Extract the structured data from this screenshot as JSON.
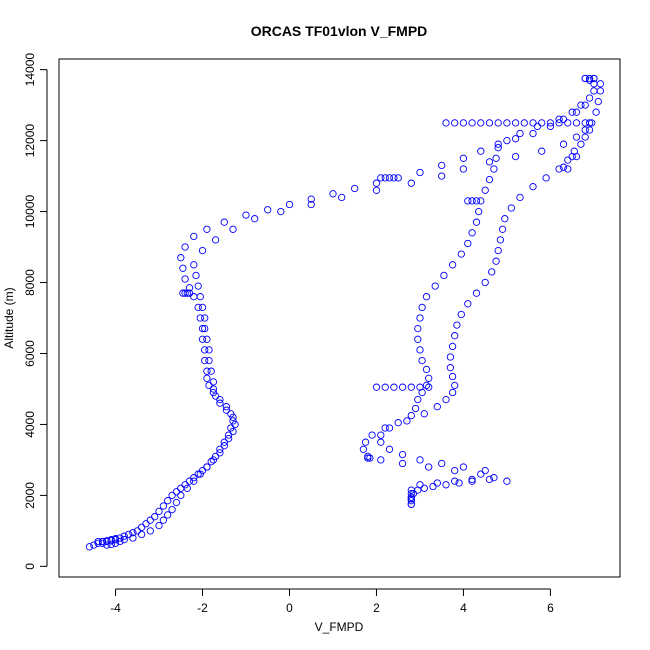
{
  "chart_data": {
    "type": "scatter",
    "title": "ORCAS TF01vlon V_FMPD",
    "xlabel": "V_FMPD",
    "ylabel": "Altitude (m)",
    "xlim": [
      -5.3,
      7.6
    ],
    "ylim": [
      -300,
      14300
    ],
    "xticks": [
      -4,
      -2,
      0,
      2,
      4,
      6
    ],
    "yticks": [
      0,
      2000,
      4000,
      6000,
      8000,
      10000,
      12000,
      14000
    ],
    "xtick_labels": [
      "-4",
      "-2",
      "0",
      "2",
      "4",
      "6"
    ],
    "ytick_labels": [
      "0",
      "2000",
      "4000",
      "6000",
      "8000",
      "10000",
      "12000",
      "14000"
    ],
    "marker": "open-circle",
    "color": "#0000ff",
    "grid": false,
    "legend": "none",
    "series": [
      {
        "points": [
          [
            -4.6,
            550
          ],
          [
            -4.5,
            600
          ],
          [
            -4.4,
            650
          ],
          [
            -4.3,
            700
          ],
          [
            -4.2,
            720
          ],
          [
            -4.1,
            750
          ],
          [
            -4.0,
            780
          ],
          [
            -3.9,
            800
          ],
          [
            -3.8,
            850
          ],
          [
            -3.7,
            900
          ],
          [
            -3.6,
            950
          ],
          [
            -3.5,
            1000
          ],
          [
            -3.4,
            1100
          ],
          [
            -3.3,
            1200
          ],
          [
            -3.2,
            1300
          ],
          [
            -3.1,
            1400
          ],
          [
            -3.0,
            1550
          ],
          [
            -2.9,
            1700
          ],
          [
            -2.8,
            1850
          ],
          [
            -2.7,
            2000
          ],
          [
            -2.6,
            2100
          ],
          [
            -2.5,
            2200
          ],
          [
            -2.4,
            2300
          ],
          [
            -2.3,
            2400
          ],
          [
            -2.2,
            2500
          ],
          [
            -2.1,
            2600
          ],
          [
            -2.0,
            2700
          ],
          [
            -1.9,
            2800
          ],
          [
            -1.8,
            2950
          ],
          [
            -1.7,
            3100
          ],
          [
            -1.6,
            3300
          ],
          [
            -1.5,
            3500
          ],
          [
            -1.4,
            3700
          ],
          [
            -1.35,
            3900
          ],
          [
            -1.3,
            4100
          ],
          [
            -1.35,
            4300
          ],
          [
            -1.45,
            4500
          ],
          [
            -1.6,
            4700
          ],
          [
            -1.75,
            4900
          ],
          [
            -1.85,
            5100
          ],
          [
            -1.9,
            5300
          ],
          [
            -1.9,
            5500
          ],
          [
            -1.95,
            5800
          ],
          [
            -1.95,
            6100
          ],
          [
            -2.0,
            6400
          ],
          [
            -2.0,
            6700
          ],
          [
            -2.05,
            7000
          ],
          [
            -2.1,
            7300
          ],
          [
            -2.2,
            7600
          ],
          [
            -2.3,
            7850
          ],
          [
            -2.4,
            8100
          ],
          [
            -2.45,
            8400
          ],
          [
            -2.5,
            8700
          ],
          [
            -2.4,
            9000
          ],
          [
            -2.2,
            9300
          ],
          [
            -1.9,
            9500
          ],
          [
            -1.5,
            9700
          ],
          [
            -1.0,
            9900
          ],
          [
            -0.5,
            10050
          ],
          [
            0,
            10200
          ],
          [
            0.5,
            10350
          ],
          [
            1.0,
            10500
          ],
          [
            1.5,
            10650
          ],
          [
            2.0,
            10800
          ],
          [
            2.5,
            10950
          ],
          [
            3.0,
            11100
          ],
          [
            3.5,
            11300
          ],
          [
            4.0,
            11500
          ],
          [
            4.4,
            11700
          ],
          [
            4.8,
            11900
          ],
          [
            5.2,
            12050
          ],
          [
            5.6,
            12200
          ],
          [
            6.0,
            12400
          ],
          [
            6.3,
            12600
          ],
          [
            6.5,
            12800
          ],
          [
            6.7,
            13000
          ],
          [
            6.9,
            13200
          ],
          [
            7.0,
            13400
          ],
          [
            7.0,
            13600
          ],
          [
            6.9,
            13700
          ]
        ]
      },
      {
        "points": [
          [
            -4.4,
            700
          ],
          [
            -4.3,
            650
          ],
          [
            -4.2,
            600
          ],
          [
            -4.1,
            620
          ],
          [
            -4.0,
            650
          ],
          [
            -3.9,
            700
          ],
          [
            -3.8,
            750
          ],
          [
            -3.6,
            800
          ],
          [
            -3.4,
            900
          ],
          [
            -3.2,
            1000
          ],
          [
            -3.0,
            1150
          ],
          [
            -2.9,
            1300
          ],
          [
            -2.8,
            1450
          ],
          [
            -2.7,
            1600
          ],
          [
            -2.6,
            1800
          ],
          [
            -2.5,
            2000
          ],
          [
            -2.35,
            2200
          ],
          [
            -2.2,
            2400
          ],
          [
            -2.05,
            2600
          ],
          [
            -1.9,
            2800
          ],
          [
            -1.75,
            3000
          ],
          [
            -1.6,
            3200
          ],
          [
            -1.5,
            3400
          ],
          [
            -1.4,
            3600
          ],
          [
            -1.3,
            3800
          ],
          [
            -1.25,
            4000
          ],
          [
            -1.3,
            4200
          ],
          [
            -1.45,
            4400
          ],
          [
            -1.6,
            4600
          ],
          [
            -1.7,
            4800
          ],
          [
            -1.75,
            5000
          ],
          [
            -1.75,
            5200
          ],
          [
            -1.8,
            5500
          ],
          [
            -1.85,
            5800
          ],
          [
            -1.85,
            6100
          ],
          [
            -1.9,
            6400
          ],
          [
            -1.95,
            6700
          ],
          [
            -1.95,
            7000
          ],
          [
            -2.0,
            7300
          ],
          [
            -2.05,
            7600
          ],
          [
            -2.1,
            7900
          ],
          [
            -2.15,
            8200
          ],
          [
            -2.2,
            8500
          ],
          [
            -2.0,
            8900
          ],
          [
            -1.7,
            9200
          ],
          [
            -1.3,
            9500
          ],
          [
            -0.8,
            9800
          ],
          [
            -0.2,
            10000
          ],
          [
            0.5,
            10200
          ],
          [
            1.2,
            10400
          ],
          [
            2.0,
            10600
          ],
          [
            2.8,
            10800
          ],
          [
            3.5,
            11000
          ],
          [
            4.0,
            11200
          ],
          [
            4.6,
            11400
          ],
          [
            5.2,
            11550
          ],
          [
            5.8,
            11700
          ],
          [
            6.3,
            11900
          ],
          [
            6.6,
            12100
          ],
          [
            6.8,
            12300
          ],
          [
            6.95,
            12500
          ],
          [
            7.05,
            12800
          ],
          [
            7.1,
            13100
          ],
          [
            7.15,
            13400
          ],
          [
            7.15,
            13600
          ],
          [
            7.0,
            13750
          ],
          [
            6.8,
            13750
          ]
        ]
      },
      {
        "points": [
          [
            2.8,
            1750
          ],
          [
            2.8,
            1900
          ],
          [
            2.85,
            2050
          ],
          [
            2.95,
            2150
          ],
          [
            3.1,
            2200
          ],
          [
            3.3,
            2250
          ],
          [
            3.6,
            2300
          ],
          [
            3.9,
            2350
          ],
          [
            4.2,
            2400
          ],
          [
            4.6,
            2450
          ],
          [
            5.0,
            2400
          ],
          [
            4.4,
            2600
          ],
          [
            3.8,
            2700
          ],
          [
            3.2,
            2800
          ],
          [
            2.6,
            2900
          ],
          [
            2.1,
            3000
          ],
          [
            1.8,
            3100
          ],
          [
            1.7,
            3300
          ],
          [
            1.75,
            3500
          ],
          [
            1.9,
            3700
          ],
          [
            2.2,
            3900
          ],
          [
            2.5,
            4050
          ],
          [
            2.8,
            4250
          ],
          [
            2.9,
            4450
          ],
          [
            2.95,
            4700
          ],
          [
            3.05,
            4900
          ],
          [
            3.15,
            5100
          ],
          [
            3.2,
            5300
          ],
          [
            3.15,
            5550
          ],
          [
            3.05,
            5800
          ],
          [
            3.0,
            6100
          ],
          [
            2.95,
            6400
          ],
          [
            2.95,
            6700
          ],
          [
            3.0,
            7000
          ],
          [
            3.05,
            7300
          ],
          [
            3.15,
            7600
          ],
          [
            3.35,
            7900
          ],
          [
            3.55,
            8200
          ],
          [
            3.75,
            8500
          ],
          [
            3.95,
            8800
          ],
          [
            4.1,
            9100
          ],
          [
            4.2,
            9400
          ],
          [
            4.3,
            9700
          ],
          [
            4.35,
            10000
          ],
          [
            4.4,
            10300
          ],
          [
            4.5,
            10600
          ],
          [
            4.6,
            10900
          ],
          [
            4.7,
            11200
          ],
          [
            4.75,
            11500
          ],
          [
            4.8,
            11800
          ],
          [
            5.0,
            12000
          ],
          [
            5.3,
            12200
          ],
          [
            5.7,
            12400
          ],
          [
            6.2,
            12600
          ],
          [
            6.6,
            12800
          ],
          [
            6.8,
            13000
          ]
        ]
      },
      {
        "points": [
          [
            3.0,
            2300
          ],
          [
            3.4,
            2350
          ],
          [
            3.8,
            2400
          ],
          [
            4.2,
            2450
          ],
          [
            4.7,
            2500
          ],
          [
            4.5,
            2700
          ],
          [
            4.0,
            2800
          ],
          [
            3.5,
            2900
          ],
          [
            3.0,
            3000
          ],
          [
            2.6,
            3150
          ],
          [
            2.3,
            3300
          ],
          [
            2.1,
            3500
          ],
          [
            2.1,
            3700
          ],
          [
            2.3,
            3900
          ],
          [
            2.7,
            4100
          ],
          [
            3.1,
            4300
          ],
          [
            3.4,
            4500
          ],
          [
            3.6,
            4700
          ],
          [
            3.75,
            4900
          ],
          [
            3.8,
            5100
          ],
          [
            3.75,
            5350
          ],
          [
            3.7,
            5600
          ],
          [
            3.7,
            5900
          ],
          [
            3.75,
            6200
          ],
          [
            3.8,
            6500
          ],
          [
            3.85,
            6800
          ],
          [
            3.95,
            7100
          ],
          [
            4.1,
            7400
          ],
          [
            4.3,
            7700
          ],
          [
            4.5,
            8000
          ],
          [
            4.65,
            8300
          ],
          [
            4.75,
            8600
          ],
          [
            4.8,
            8900
          ],
          [
            4.85,
            9200
          ],
          [
            4.9,
            9500
          ],
          [
            4.95,
            9800
          ],
          [
            5.1,
            10100
          ],
          [
            5.3,
            10400
          ],
          [
            5.6,
            10700
          ],
          [
            5.9,
            10950
          ],
          [
            6.2,
            11200
          ],
          [
            6.4,
            11450
          ],
          [
            6.55,
            11700
          ],
          [
            6.7,
            11900
          ],
          [
            6.8,
            12100
          ],
          [
            6.9,
            12300
          ]
        ]
      },
      {
        "points": [
          [
            3.6,
            12500
          ],
          [
            3.8,
            12500
          ],
          [
            4.0,
            12500
          ],
          [
            4.2,
            12500
          ],
          [
            4.4,
            12500
          ],
          [
            4.6,
            12500
          ],
          [
            4.8,
            12500
          ],
          [
            5.0,
            12500
          ],
          [
            5.2,
            12500
          ],
          [
            5.4,
            12500
          ],
          [
            5.6,
            12500
          ],
          [
            5.8,
            12500
          ],
          [
            6.0,
            12500
          ],
          [
            6.2,
            12500
          ],
          [
            6.4,
            12500
          ],
          [
            6.6,
            12500
          ],
          [
            6.8,
            12500
          ],
          [
            6.9,
            12500
          ],
          [
            2.0,
            5050
          ],
          [
            2.2,
            5050
          ],
          [
            2.4,
            5050
          ],
          [
            2.6,
            5050
          ],
          [
            2.8,
            5050
          ],
          [
            3.0,
            5050
          ],
          [
            3.2,
            5050
          ],
          [
            2.8,
            1750
          ],
          [
            2.8,
            1850
          ],
          [
            2.8,
            1950
          ],
          [
            2.8,
            2050
          ],
          [
            2.8,
            2150
          ],
          [
            -2.45,
            7700
          ],
          [
            -2.4,
            7700
          ],
          [
            -2.35,
            7700
          ],
          [
            -2.3,
            7700
          ],
          [
            2.1,
            10950
          ],
          [
            2.2,
            10950
          ],
          [
            2.3,
            10950
          ],
          [
            2.4,
            10950
          ],
          [
            4.1,
            10300
          ],
          [
            4.2,
            10300
          ],
          [
            4.3,
            10300
          ],
          [
            6.4,
            11200
          ],
          [
            6.3,
            11250
          ],
          [
            6.5,
            11550
          ],
          [
            6.6,
            11550
          ],
          [
            6.8,
            13750
          ],
          [
            6.9,
            13750
          ],
          [
            7.0,
            13750
          ],
          [
            -4.3,
            700
          ],
          [
            -4.2,
            700
          ],
          [
            -4.1,
            720
          ],
          [
            -4.0,
            750
          ],
          [
            1.85,
            3050
          ],
          [
            1.8,
            3050
          ]
        ]
      }
    ]
  }
}
